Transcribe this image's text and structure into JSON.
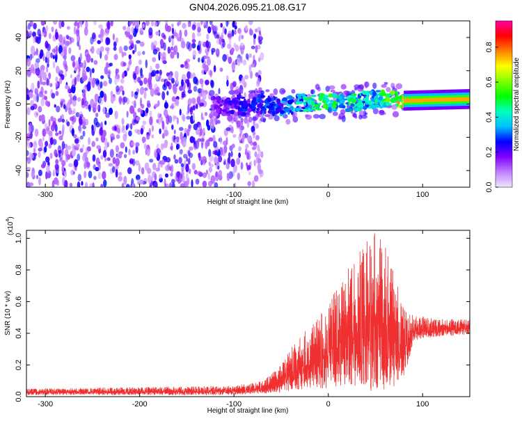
{
  "title": "GN04.2026.095.21.08.G17",
  "chart_data": [
    {
      "type": "heatmap",
      "name": "spectrogram",
      "xlabel": "Height of straight line (km)",
      "ylabel": "Frequency (Hz)",
      "xlim": [
        -320,
        150
      ],
      "ylim": [
        -50,
        50
      ],
      "x_ticks": [
        -300,
        -200,
        -100,
        0,
        100
      ],
      "y_ticks": [
        -40,
        -20,
        0,
        20,
        40
      ],
      "x_tick_labels": [
        "-300",
        "-200",
        "-100",
        "0",
        "100"
      ],
      "y_tick_labels": [
        "-40",
        "-20",
        "0",
        "20",
        "40"
      ],
      "colorbar": {
        "label": "Normalized spectral amplitude",
        "range": [
          0,
          0.95
        ],
        "ticks": [
          0.0,
          0.2,
          0.4,
          0.6,
          0.8
        ],
        "tick_labels": [
          "0.0",
          "0.2",
          "0.4",
          "0.6",
          "0.8"
        ],
        "colormap": [
          "#f0e6ff",
          "#c080ff",
          "#8000ff",
          "#0000ff",
          "#00c0ff",
          "#00ffc0",
          "#00ff00",
          "#80ff00",
          "#ffff00",
          "#ff8000",
          "#ff0000",
          "#ff00a0"
        ]
      },
      "noise_region_x": [
        -320,
        -70
      ],
      "signal_trace": [
        {
          "x": -125,
          "f": -1,
          "a": 0.15
        },
        {
          "x": -100,
          "f": -2,
          "a": 0.25
        },
        {
          "x": -75,
          "f": 0,
          "a": 0.3
        },
        {
          "x": -50,
          "f": -2,
          "a": 0.35
        },
        {
          "x": -25,
          "f": 1,
          "a": 0.45
        },
        {
          "x": 0,
          "f": 1,
          "a": 0.55
        },
        {
          "x": 25,
          "f": 1,
          "a": 0.5
        },
        {
          "x": 50,
          "f": 3,
          "a": 0.45
        },
        {
          "x": 75,
          "f": 2,
          "a": 0.75
        },
        {
          "x": 100,
          "f": 2,
          "a": 0.85
        },
        {
          "x": 125,
          "f": 3,
          "a": 0.6
        },
        {
          "x": 150,
          "f": 3,
          "a": 0.55
        }
      ]
    },
    {
      "type": "line",
      "name": "snr",
      "xlabel": "Height of straight line (km)",
      "ylabel": "SNR (10 * v/v)",
      "y_scale_label": "(x10",
      "y_scale_exponent": "4",
      "xlim": [
        -320,
        150
      ],
      "ylim": [
        0,
        1.05
      ],
      "x_ticks": [
        -300,
        -200,
        -100,
        0,
        100
      ],
      "y_ticks": [
        0.0,
        0.2,
        0.4,
        0.6,
        0.8,
        1.0
      ],
      "x_tick_labels": [
        "-300",
        "-200",
        "-100",
        "0",
        "100"
      ],
      "y_tick_labels": [
        "0.0",
        "0.2",
        "0.4",
        "0.6",
        "0.8",
        "1.0"
      ],
      "color": "#f03030",
      "envelope": [
        {
          "x": -320,
          "lo": 0.01,
          "hi": 0.05
        },
        {
          "x": -200,
          "lo": 0.01,
          "hi": 0.06
        },
        {
          "x": -100,
          "lo": 0.01,
          "hi": 0.07
        },
        {
          "x": -70,
          "lo": 0.02,
          "hi": 0.1
        },
        {
          "x": -50,
          "lo": 0.02,
          "hi": 0.2
        },
        {
          "x": -40,
          "lo": 0.04,
          "hi": 0.3
        },
        {
          "x": -20,
          "lo": 0.05,
          "hi": 0.45
        },
        {
          "x": 0,
          "lo": 0.05,
          "hi": 0.6
        },
        {
          "x": 20,
          "lo": 0.05,
          "hi": 0.8
        },
        {
          "x": 35,
          "lo": 0.05,
          "hi": 0.95
        },
        {
          "x": 50,
          "lo": 0.03,
          "hi": 1.05
        },
        {
          "x": 65,
          "lo": 0.05,
          "hi": 0.9
        },
        {
          "x": 80,
          "lo": 0.1,
          "hi": 0.55
        },
        {
          "x": 90,
          "lo": 0.35,
          "hi": 0.52
        },
        {
          "x": 120,
          "lo": 0.38,
          "hi": 0.49
        },
        {
          "x": 150,
          "lo": 0.39,
          "hi": 0.49
        }
      ]
    }
  ]
}
